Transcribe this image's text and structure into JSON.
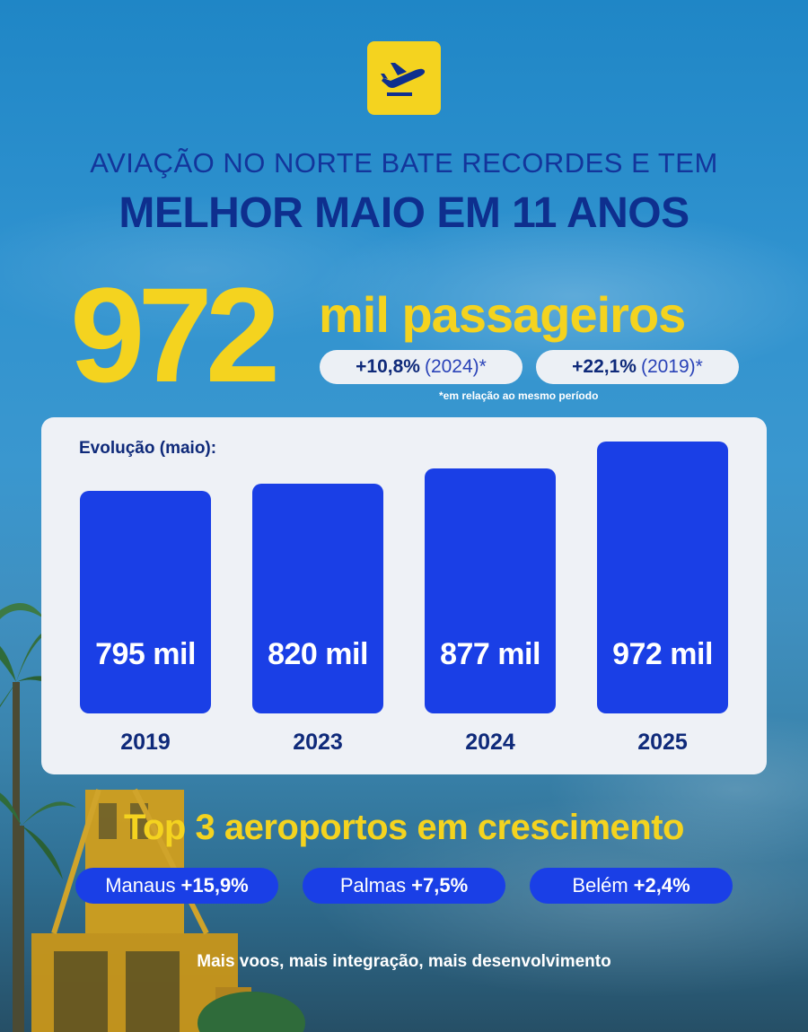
{
  "header": {
    "line1": "AVIAÇÃO NO NORTE BATE RECORDES E TEM",
    "line2": "MELHOR MAIO EM 11 ANOS"
  },
  "highlight": {
    "number": "972",
    "label": "mil passageiros",
    "comparisons": [
      {
        "change": "+10,8%",
        "year": "(2024)*"
      },
      {
        "change": "+22,1%",
        "year": "(2019)*"
      }
    ],
    "footnote": "*em relação ao mesmo período"
  },
  "chart_data": {
    "type": "bar",
    "title": "Evolução (maio):",
    "categories": [
      "2019",
      "2023",
      "2024",
      "2025"
    ],
    "values": [
      795,
      820,
      877,
      972
    ],
    "value_labels": [
      "795 mil",
      "820 mil",
      "877 mil",
      "972 mil"
    ],
    "unit": "mil",
    "ylim": [
      0,
      972
    ],
    "grid": false,
    "legend": "none"
  },
  "top3": {
    "title": "Top 3 aeroportos em crescimento",
    "items": [
      {
        "city": "Manaus",
        "change": "+15,9%"
      },
      {
        "city": "Palmas",
        "change": "+7,5%"
      },
      {
        "city": "Belém",
        "change": "+2,4%"
      }
    ]
  },
  "tagline": "Mais voos, mais integração, mais desenvolvimento",
  "colors": {
    "yellow": "#f4d31f",
    "navy": "#0e2f8e",
    "bar_blue": "#1a3fe6",
    "card_bg": "#eef1f6"
  },
  "icons": {
    "logo": "airplane-takeoff-icon"
  }
}
